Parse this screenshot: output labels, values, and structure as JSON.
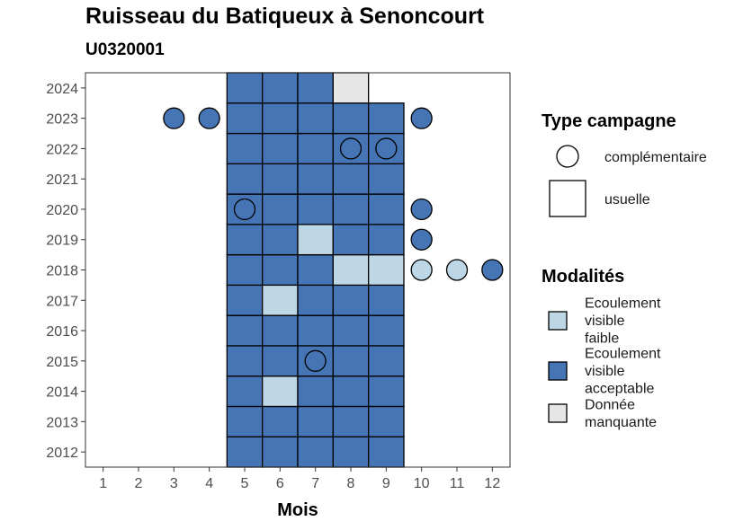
{
  "chart_data": {
    "type": "heatmap",
    "title": "Ruisseau du Batiqueux à Senoncourt",
    "subtitle": "U0320001",
    "xlabel": "Mois",
    "ylabel": "",
    "x_ticks": [
      "1",
      "2",
      "3",
      "4",
      "5",
      "6",
      "7",
      "8",
      "9",
      "10",
      "11",
      "12"
    ],
    "y_ticks": [
      "2012",
      "2013",
      "2014",
      "2015",
      "2016",
      "2017",
      "2018",
      "2019",
      "2020",
      "2021",
      "2022",
      "2023",
      "2024"
    ],
    "xlim": [
      0.5,
      12.5
    ],
    "ylim": [
      2011.5,
      2024.5
    ],
    "grid": false,
    "colors": {
      "Ecoulement visible faible": "#bdd7e7",
      "Ecoulement visible acceptable": "#4575b4",
      "Donnée manquante": "#e6e6e6"
    },
    "legend": {
      "position": "right",
      "type_title": "Type campagne",
      "type_items": [
        {
          "label": "complémentaire",
          "shape": "circle"
        },
        {
          "label": "usuelle",
          "shape": "square"
        }
      ],
      "modal_title": "Modalités",
      "modal_items": [
        {
          "label": [
            "Ecoulement",
            "visible",
            "faible"
          ],
          "color": "#bdd7e7"
        },
        {
          "label": [
            "Ecoulement",
            "visible",
            "acceptable"
          ],
          "color": "#4575b4"
        },
        {
          "label": [
            "Donnée",
            "manquante"
          ],
          "color": "#e6e6e6"
        }
      ]
    },
    "usuelle": [
      {
        "year": 2012,
        "months": [
          5,
          6,
          7,
          8,
          9
        ],
        "modalite": [
          "A",
          "A",
          "A",
          "A",
          "A"
        ]
      },
      {
        "year": 2013,
        "months": [
          5,
          6,
          7,
          8,
          9
        ],
        "modalite": [
          "A",
          "A",
          "A",
          "A",
          "A"
        ]
      },
      {
        "year": 2014,
        "months": [
          5,
          6,
          7,
          8,
          9
        ],
        "modalite": [
          "A",
          "F",
          "A",
          "A",
          "A"
        ]
      },
      {
        "year": 2015,
        "months": [
          5,
          6,
          7,
          8,
          9
        ],
        "modalite": [
          "A",
          "A",
          "A",
          "A",
          "A"
        ]
      },
      {
        "year": 2016,
        "months": [
          5,
          6,
          7,
          8,
          9
        ],
        "modalite": [
          "A",
          "A",
          "A",
          "A",
          "A"
        ]
      },
      {
        "year": 2017,
        "months": [
          5,
          6,
          7,
          8,
          9
        ],
        "modalite": [
          "A",
          "F",
          "A",
          "A",
          "A"
        ]
      },
      {
        "year": 2018,
        "months": [
          5,
          6,
          7,
          8,
          9
        ],
        "modalite": [
          "A",
          "A",
          "A",
          "F",
          "F"
        ]
      },
      {
        "year": 2019,
        "months": [
          5,
          6,
          7,
          8,
          9
        ],
        "modalite": [
          "A",
          "A",
          "F",
          "A",
          "A"
        ]
      },
      {
        "year": 2020,
        "months": [
          5,
          6,
          7,
          8,
          9
        ],
        "modalite": [
          "A",
          "A",
          "A",
          "A",
          "A"
        ]
      },
      {
        "year": 2021,
        "months": [
          5,
          6,
          7,
          8,
          9
        ],
        "modalite": [
          "A",
          "A",
          "A",
          "A",
          "A"
        ]
      },
      {
        "year": 2022,
        "months": [
          5,
          6,
          7,
          8,
          9
        ],
        "modalite": [
          "A",
          "A",
          "A",
          "A",
          "A"
        ]
      },
      {
        "year": 2023,
        "months": [
          5,
          6,
          7,
          8,
          9
        ],
        "modalite": [
          "A",
          "A",
          "A",
          "A",
          "A"
        ]
      },
      {
        "year": 2024,
        "months": [
          5,
          6,
          7,
          8
        ],
        "modalite": [
          "A",
          "A",
          "A",
          "M"
        ]
      }
    ],
    "complementaire": [
      {
        "year": 2023,
        "month": 3,
        "modalite": "A"
      },
      {
        "year": 2023,
        "month": 4,
        "modalite": "A"
      },
      {
        "year": 2023,
        "month": 10,
        "modalite": "A"
      },
      {
        "year": 2022,
        "month": 8,
        "modalite": "A"
      },
      {
        "year": 2022,
        "month": 9,
        "modalite": "A"
      },
      {
        "year": 2020,
        "month": 5,
        "modalite": "A"
      },
      {
        "year": 2020,
        "month": 10,
        "modalite": "A"
      },
      {
        "year": 2019,
        "month": 10,
        "modalite": "A"
      },
      {
        "year": 2018,
        "month": 10,
        "modalite": "F"
      },
      {
        "year": 2018,
        "month": 11,
        "modalite": "F"
      },
      {
        "year": 2018,
        "month": 12,
        "modalite": "A"
      },
      {
        "year": 2015,
        "month": 7,
        "modalite": "A"
      }
    ],
    "modalite_codes": {
      "F": "Ecoulement visible faible",
      "A": "Ecoulement visible acceptable",
      "M": "Donnée manquante"
    }
  }
}
